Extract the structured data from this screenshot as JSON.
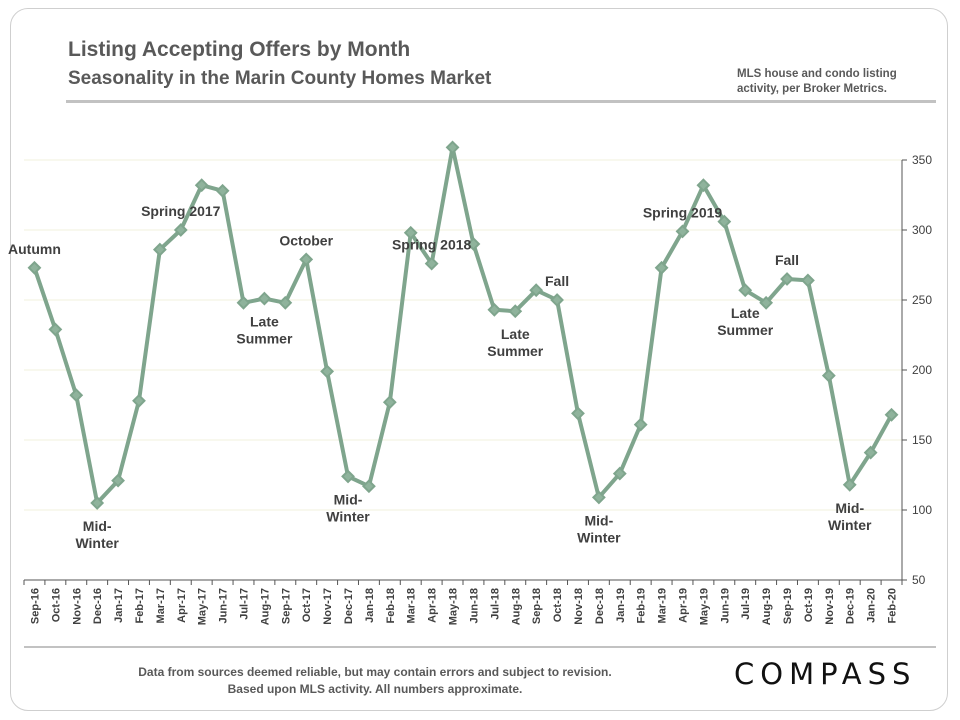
{
  "header": {
    "title": "Listing Accepting Offers by Month",
    "subtitle": "Seasonality in the Marin County Homes Market",
    "note_line1": "MLS house and condo listing",
    "note_line2": "activity, per Broker Metrics."
  },
  "footer": {
    "line1": "Data from sources deemed reliable, but may contain errors and subject to revision.",
    "line2": "Based upon MLS activity. All numbers approximate."
  },
  "brand": {
    "logo": "COMPASS"
  },
  "colors": {
    "line": "#7fa58d",
    "marker_fill": "#8fb39c",
    "grid": "#f0f0dc",
    "text": "#404040"
  },
  "chart_data": {
    "type": "line",
    "x": [
      "Sep-16",
      "Oct-16",
      "Nov-16",
      "Dec-16",
      "Jan-17",
      "Feb-17",
      "Mar-17",
      "Apr-17",
      "May-17",
      "Jun-17",
      "Jul-17",
      "Aug-17",
      "Sep-17",
      "Oct-17",
      "Nov-17",
      "Dec-17",
      "Jan-18",
      "Feb-18",
      "Mar-18",
      "Apr-18",
      "May-18",
      "Jun-18",
      "Jul-18",
      "Aug-18",
      "Sep-18",
      "Oct-18",
      "Nov-18",
      "Dec-18",
      "Jan-19",
      "Feb-19",
      "Mar-19",
      "Apr-19",
      "May-19",
      "Jun-19",
      "Jul-19",
      "Aug-19",
      "Sep-19",
      "Oct-19",
      "Nov-19",
      "Dec-19",
      "Jan-20",
      "Feb-20"
    ],
    "values": [
      273,
      229,
      182,
      105,
      121,
      178,
      286,
      300,
      332,
      328,
      248,
      251,
      248,
      279,
      199,
      124,
      117,
      177,
      298,
      276,
      359,
      290,
      243,
      242,
      257,
      250,
      169,
      109,
      126,
      161,
      273,
      299,
      332,
      306,
      257,
      248,
      265,
      264,
      196,
      118,
      141,
      168
    ],
    "ylim": [
      50,
      350
    ],
    "yticks": [
      50,
      100,
      150,
      200,
      250,
      300,
      350
    ],
    "y_axis_side": "right",
    "grid": true,
    "annotations": [
      {
        "lines": [
          "Autumn"
        ],
        "at": "Sep-16",
        "pos": "above"
      },
      {
        "lines": [
          "Mid-",
          "Winter"
        ],
        "at": "Dec-16",
        "pos": "below"
      },
      {
        "lines": [
          "Spring 2017"
        ],
        "at": "Apr-17",
        "pos": "above"
      },
      {
        "lines": [
          "Late",
          "Summer"
        ],
        "at": "Aug-17",
        "pos": "below"
      },
      {
        "lines": [
          "October"
        ],
        "at": "Oct-17",
        "pos": "above"
      },
      {
        "lines": [
          "Mid-",
          "Winter"
        ],
        "at": "Dec-17",
        "pos": "below"
      },
      {
        "lines": [
          "Spring 2018"
        ],
        "at": "Apr-18",
        "pos": "above"
      },
      {
        "lines": [
          "Late",
          "Summer"
        ],
        "at": "Aug-18",
        "pos": "below"
      },
      {
        "lines": [
          "Fall"
        ],
        "at": "Oct-18",
        "pos": "above"
      },
      {
        "lines": [
          "Mid-",
          "Winter"
        ],
        "at": "Dec-18",
        "pos": "below"
      },
      {
        "lines": [
          "Spring 2019"
        ],
        "at": "Apr-19",
        "pos": "above"
      },
      {
        "lines": [
          "Late",
          "Summer"
        ],
        "at": "Jul-19",
        "pos": "below"
      },
      {
        "lines": [
          "Fall"
        ],
        "at": "Sep-19",
        "pos": "above"
      },
      {
        "lines": [
          "Mid-",
          "Winter"
        ],
        "at": "Dec-19",
        "pos": "below"
      }
    ]
  }
}
